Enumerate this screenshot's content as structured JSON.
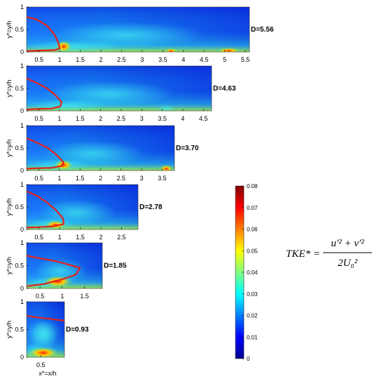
{
  "chart_data": {
    "type": "heatmap",
    "title": "",
    "colormap": "jet",
    "panels": [
      {
        "id": "D=5.56",
        "label": "D=5.56",
        "xlim": [
          0.2,
          5.6
        ],
        "ylim": [
          0,
          1
        ],
        "xticks": [
          "0.5",
          "1",
          "1.5",
          "2",
          "2.5",
          "3",
          "3.5",
          "4",
          "4.5",
          "5",
          "5.5"
        ],
        "yticks": [
          "0",
          "0.5",
          "1"
        ],
        "ylabel": "y*=y/h",
        "xlabel": "",
        "contour": [
          [
            0.2,
            0.78
          ],
          [
            0.45,
            0.72
          ],
          [
            0.7,
            0.58
          ],
          [
            0.88,
            0.38
          ],
          [
            0.98,
            0.18
          ],
          [
            1.0,
            0.08
          ],
          [
            0.88,
            0.04
          ],
          [
            0.5,
            0.03
          ],
          [
            0.2,
            0.02
          ]
        ]
      },
      {
        "id": "D=4.63",
        "label": "D=4.63",
        "xlim": [
          0.2,
          4.7
        ],
        "ylim": [
          0,
          1
        ],
        "xticks": [
          "0.5",
          "1",
          "1.5",
          "2",
          "2.5",
          "3",
          "3.5",
          "4",
          "4.5"
        ],
        "yticks": [
          "0",
          "0.5",
          "1"
        ],
        "ylabel": "y*=y/h",
        "xlabel": "",
        "contour": [
          [
            0.2,
            0.72
          ],
          [
            0.45,
            0.62
          ],
          [
            0.7,
            0.5
          ],
          [
            0.9,
            0.35
          ],
          [
            1.05,
            0.2
          ],
          [
            1.02,
            0.1
          ],
          [
            0.8,
            0.05
          ],
          [
            0.4,
            0.04
          ],
          [
            0.2,
            0.03
          ]
        ]
      },
      {
        "id": "D=3.70",
        "label": "D=3.70",
        "xlim": [
          0.2,
          3.8
        ],
        "ylim": [
          0,
          1
        ],
        "xticks": [
          "0.5",
          "1",
          "1.5",
          "2",
          "2.5",
          "3",
          "3.5"
        ],
        "yticks": [
          "0",
          "0.5",
          "1"
        ],
        "ylabel": "y*=y/h",
        "xlabel": "",
        "contour": [
          [
            0.2,
            0.72
          ],
          [
            0.45,
            0.62
          ],
          [
            0.72,
            0.5
          ],
          [
            0.95,
            0.33
          ],
          [
            1.1,
            0.18
          ],
          [
            1.05,
            0.1
          ],
          [
            0.8,
            0.06
          ],
          [
            0.4,
            0.05
          ],
          [
            0.2,
            0.04
          ]
        ]
      },
      {
        "id": "D=2.78",
        "label": "D=2.78",
        "xlim": [
          0.2,
          2.9
        ],
        "ylim": [
          0,
          1
        ],
        "xticks": [
          "0.5",
          "1",
          "1.5",
          "2",
          "2.5"
        ],
        "yticks": [
          "0",
          "0.5",
          "1"
        ],
        "ylabel": "y*=y/h",
        "xlabel": "",
        "contour": [
          [
            0.2,
            0.85
          ],
          [
            0.45,
            0.75
          ],
          [
            0.7,
            0.6
          ],
          [
            0.92,
            0.42
          ],
          [
            1.08,
            0.25
          ],
          [
            1.1,
            0.12
          ],
          [
            0.85,
            0.07
          ],
          [
            0.45,
            0.05
          ],
          [
            0.2,
            0.04
          ]
        ]
      },
      {
        "id": "D=1.85",
        "label": "D=1.85",
        "xlim": [
          0.2,
          1.9
        ],
        "ylim": [
          0,
          1
        ],
        "xticks": [
          "0.5",
          "1",
          "1.5"
        ],
        "yticks": [
          "0",
          "0.5",
          "1"
        ],
        "ylabel": "y*=y/h",
        "xlabel": "",
        "contour": [
          [
            0.2,
            0.72
          ],
          [
            0.5,
            0.66
          ],
          [
            0.85,
            0.6
          ],
          [
            1.15,
            0.52
          ],
          [
            1.4,
            0.45
          ],
          [
            1.3,
            0.3
          ],
          [
            1.0,
            0.2
          ],
          [
            0.6,
            0.1
          ],
          [
            0.2,
            0.05
          ]
        ]
      },
      {
        "id": "D=0.93",
        "label": "D=0.93",
        "xlim": [
          0.2,
          1.0
        ],
        "ylim": [
          0,
          1
        ],
        "xticks": [
          "0.5"
        ],
        "yticks": [
          "0",
          "0.5",
          "1"
        ],
        "ylabel": "y*=y/h",
        "xlabel": "x*=x/h",
        "contour": [
          [
            0.2,
            0.75
          ],
          [
            0.4,
            0.72
          ],
          [
            0.6,
            0.7
          ],
          [
            0.8,
            0.68
          ],
          [
            1.0,
            0.66
          ]
        ]
      }
    ],
    "colorbar": {
      "min": 0,
      "max": 0.08,
      "ticks": [
        "0",
        "0.01",
        "0.02",
        "0.03",
        "0.04",
        "0.05",
        "0.06",
        "0.07",
        "0.08"
      ]
    },
    "equation": {
      "lhs": "TKE*",
      "numerator": "u′² + v′²",
      "denominator": "2U₀²"
    }
  }
}
